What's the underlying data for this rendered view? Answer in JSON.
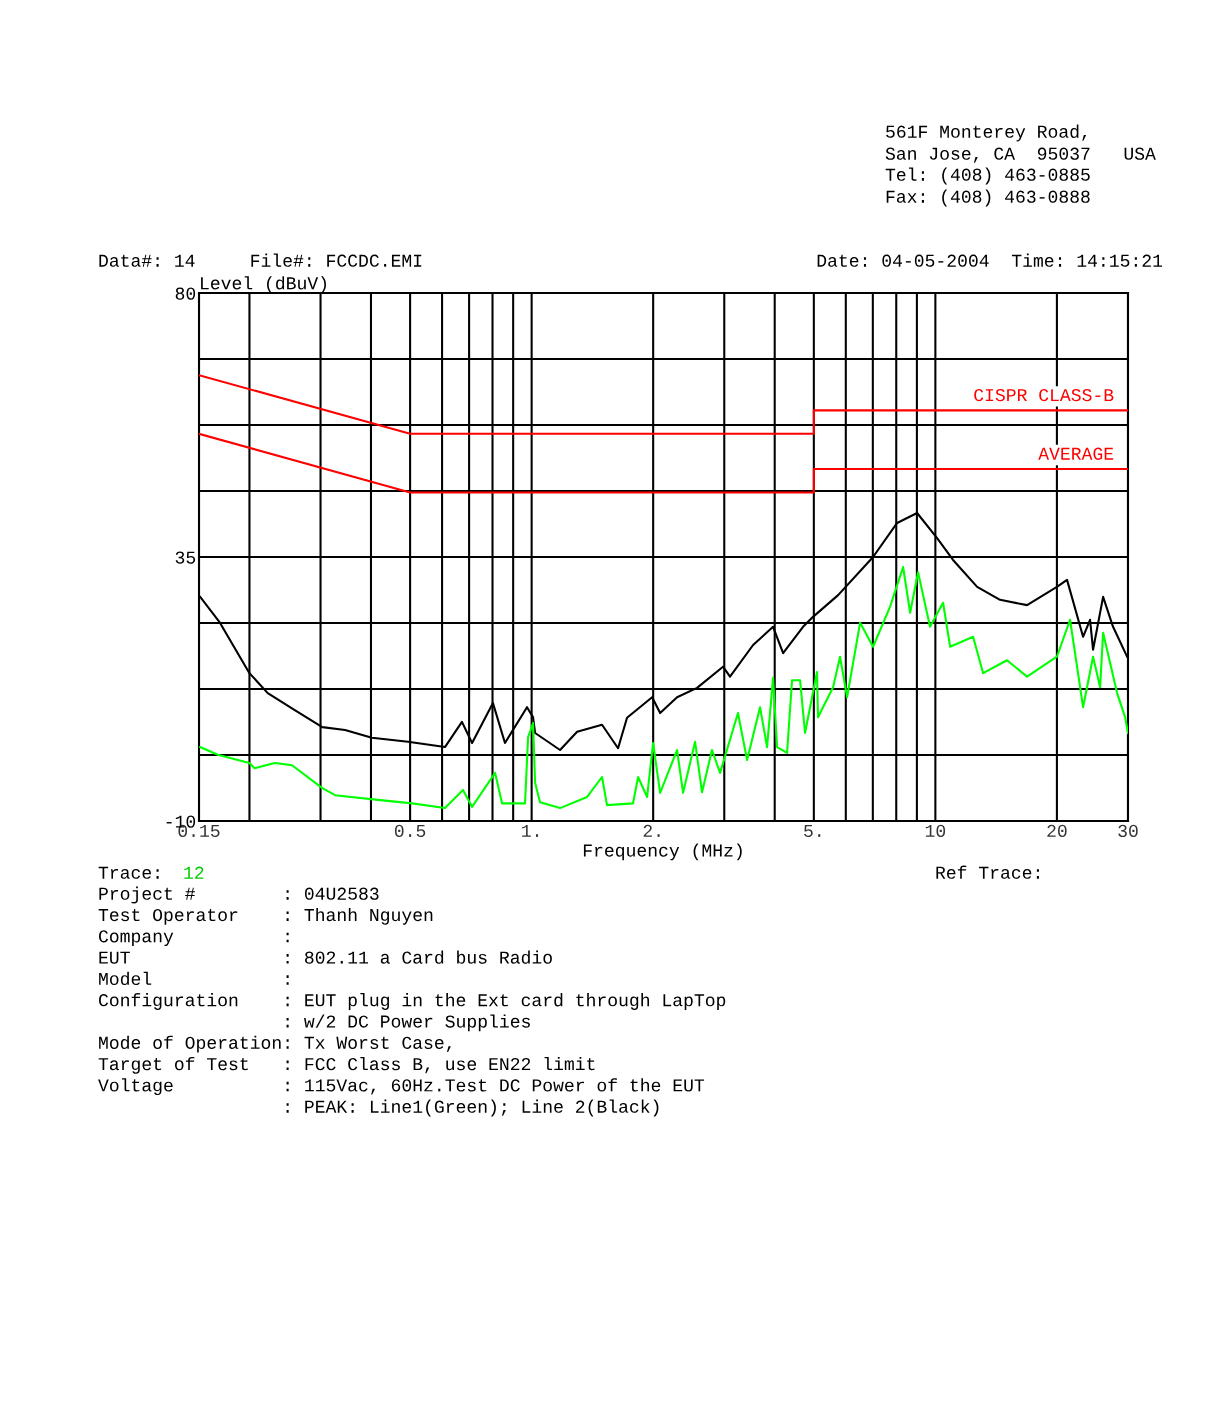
{
  "chart_data": {
    "type": "line",
    "xlabel": "Frequency (MHz)",
    "ylabel": "Level (dBuV)",
    "log": "x",
    "grid": true,
    "marker": "none",
    "line_style": "solid",
    "xlim": [
      0.15,
      30
    ],
    "ylim": [
      -10,
      80
    ],
    "xticks": [
      0.15,
      {
        "value": 0.2,
        "label": null
      },
      {
        "value": 0.3,
        "label": null
      },
      {
        "value": 0.4,
        "label": null
      },
      0.5,
      {
        "value": 0.6,
        "label": null
      },
      {
        "value": 0.7,
        "label": null
      },
      {
        "value": 0.8,
        "label": null
      },
      {
        "value": 0.9,
        "label": null
      },
      {
        "value": 1,
        "label": "1."
      },
      {
        "value": 2,
        "label": "2."
      },
      {
        "value": 3,
        "label": null
      },
      {
        "value": 4,
        "label": null
      },
      {
        "value": 5,
        "label": "5."
      },
      {
        "value": 6,
        "label": null
      },
      {
        "value": 7,
        "label": null
      },
      {
        "value": 8,
        "label": null
      },
      {
        "value": 9,
        "label": null
      },
      10,
      20,
      30
    ],
    "yticks": [
      -10,
      {
        "value": 1.25,
        "label": null
      },
      {
        "value": 12.5,
        "label": null
      },
      {
        "value": 23.75,
        "label": null
      },
      35,
      {
        "value": 46.25,
        "label": null
      },
      {
        "value": 57.5,
        "label": null
      },
      {
        "value": 68.75,
        "label": null
      },
      80
    ],
    "series": [
      {
        "color": "#000000",
        "x": [
          0.151,
          0.169,
          0.2,
          0.222,
          0.259,
          0.303,
          0.345,
          0.402,
          0.494,
          0.61,
          0.672,
          0.712,
          0.802,
          0.859,
          0.974,
          1.008,
          1.02,
          1.176,
          1.296,
          1.494,
          1.637,
          1.723,
          1.988,
          2.081,
          2.292,
          2.569,
          2.979,
          3.1,
          3.536,
          3.963,
          4.196,
          4.702,
          4.977,
          5.742,
          7.01,
          8.04,
          9.01,
          10.1,
          11.06,
          12.69,
          14.46,
          16.87,
          20.0,
          21.19,
          23.22,
          24.16,
          24.58,
          26.03,
          27.55,
          29.85
        ],
        "values": [
          28.2,
          23.8,
          15.2,
          11.8,
          8.9,
          6.0,
          5.5,
          4.2,
          3.5,
          2.6,
          6.9,
          3.3,
          10.1,
          3.3,
          9.4,
          7.7,
          5.0,
          2.1,
          5.2,
          6.4,
          2.4,
          7.6,
          11.1,
          8.4,
          11.1,
          12.7,
          16.3,
          14.6,
          20.0,
          23.1,
          18.6,
          23.1,
          24.8,
          28.5,
          35.0,
          40.8,
          42.5,
          38.2,
          34.5,
          29.9,
          27.7,
          26.8,
          29.9,
          31.1,
          21.4,
          24.3,
          19.2,
          28.2,
          23.1,
          18.0
        ]
      },
      {
        "color": "#00ff00",
        "x": [
          0.151,
          0.167,
          0.2,
          0.206,
          0.231,
          0.255,
          0.303,
          0.326,
          0.416,
          0.506,
          0.61,
          0.676,
          0.712,
          0.812,
          0.845,
          0.963,
          0.98,
          1.008,
          1.02,
          1.049,
          1.176,
          1.372,
          1.494,
          1.537,
          1.783,
          1.835,
          1.932,
          1.999,
          2.081,
          2.292,
          2.372,
          2.54,
          2.643,
          2.797,
          2.929,
          3.244,
          3.417,
          3.679,
          3.829,
          3.963,
          4.055,
          4.292,
          4.416,
          4.623,
          4.755,
          5.092,
          5.121,
          5.58,
          5.807,
          6.044,
          6.511,
          7.01,
          7.72,
          8.32,
          8.66,
          9.06,
          9.7,
          10.45,
          10.88,
          12.4,
          13.13,
          15.05,
          16.87,
          20.0,
          21.56,
          23.22,
          24.58,
          25.59,
          26.03,
          28.19,
          29.51,
          30.0
        ],
        "values": [
          2.6,
          1.3,
          -0.1,
          -1.0,
          -0.1,
          -0.5,
          -4.4,
          -5.6,
          -6.4,
          -7.0,
          -7.8,
          -4.7,
          -7.6,
          -1.8,
          -7.0,
          -7.0,
          4.3,
          6.7,
          -3.5,
          -6.8,
          -7.8,
          -5.9,
          -2.5,
          -7.3,
          -7.0,
          -2.5,
          -5.9,
          3.3,
          -5.2,
          2.1,
          -5.2,
          3.5,
          -5.1,
          2.1,
          -1.8,
          8.4,
          0.4,
          9.4,
          2.6,
          14.4,
          2.6,
          1.6,
          14.0,
          14.0,
          5.0,
          15.4,
          7.7,
          12.8,
          18.0,
          11.1,
          23.8,
          19.7,
          26.5,
          33.3,
          25.5,
          32.4,
          23.1,
          27.2,
          19.7,
          21.4,
          15.2,
          17.4,
          14.6,
          18.0,
          24.3,
          9.4,
          18.0,
          12.8,
          22.1,
          11.8,
          7.7,
          5.0
        ]
      },
      {
        "name": "CISPR CLASS-B",
        "color": "#ff0000",
        "x": [
          0.15,
          0.5,
          5,
          5,
          30
        ],
        "values": [
          66,
          56,
          56,
          60,
          60
        ]
      },
      {
        "name": "AVERAGE",
        "color": "#ff0000",
        "x": [
          0.15,
          0.5,
          5,
          5,
          30
        ],
        "values": [
          56,
          46,
          46,
          50,
          50
        ]
      }
    ],
    "annotations": [
      "561F Monterey Road,",
      "San Jose, CA  95037   USA",
      "Tel: (408) 463-0885",
      "Fax: (408) 463-0888",
      "Data#: 14     File#: FCCDC.EMI",
      "Date: 04-05-2004  Time: 14:15:21",
      "Trace:",
      "12",
      "Ref Trace:",
      "Project #        : 04U2583",
      "Test Operator    : Thanh Nguyen",
      "Company          :",
      "EUT              : 802.11 a Card bus Radio",
      "Model            :",
      "Configuration    : EUT plug in the Ext card through LapTop",
      "                 : w/2 DC Power Supplies",
      "Mode of Operation: Tx Worst Case,",
      "Target of Test   : FCC Class B, use EN22 limit",
      "Voltage          : 115Vac, 60Hz.Test DC Power of the EUT",
      "                 : PEAK: Line1(Green); Line 2(Black)"
    ]
  }
}
